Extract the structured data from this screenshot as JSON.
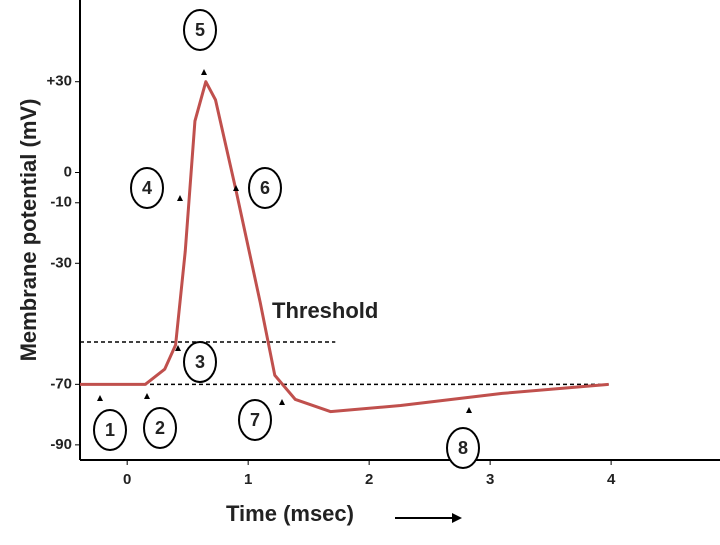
{
  "chart_data": {
    "type": "line",
    "x_label": "Time (msec)",
    "y_label": "Membrane potential (mV)",
    "x": [
      -0.39,
      0.15,
      0.31,
      0.4,
      0.48,
      0.56,
      0.65,
      0.73,
      0.9,
      1.1,
      1.22,
      1.39,
      1.68,
      2.26,
      3.1,
      3.98
    ],
    "series": [
      {
        "color": "#c0504d",
        "values": [
          -70,
          -70,
          -65,
          -57,
          -26,
          17,
          30,
          24,
          -6,
          -43,
          -67,
          -75,
          -79,
          -77,
          -73,
          -70
        ]
      }
    ],
    "xlim": [
      -0.39,
      4.9
    ],
    "ylim": [
      -95,
      57
    ],
    "xticks": [
      0,
      1,
      2,
      3,
      4
    ],
    "yticks": [
      {
        "value": 30,
        "label": "+30"
      },
      0,
      -10,
      -30,
      -70,
      -90
    ],
    "threshold_label": "Threshold",
    "hlines": [
      {
        "y": -56,
        "x_start": -0.39,
        "x_end": 1.72
      },
      {
        "y": -70,
        "x_start": -0.39,
        "x_end": 3.98
      }
    ],
    "markers": [
      "1",
      "2",
      "3",
      "4",
      "5",
      "6",
      "7",
      "8"
    ]
  }
}
